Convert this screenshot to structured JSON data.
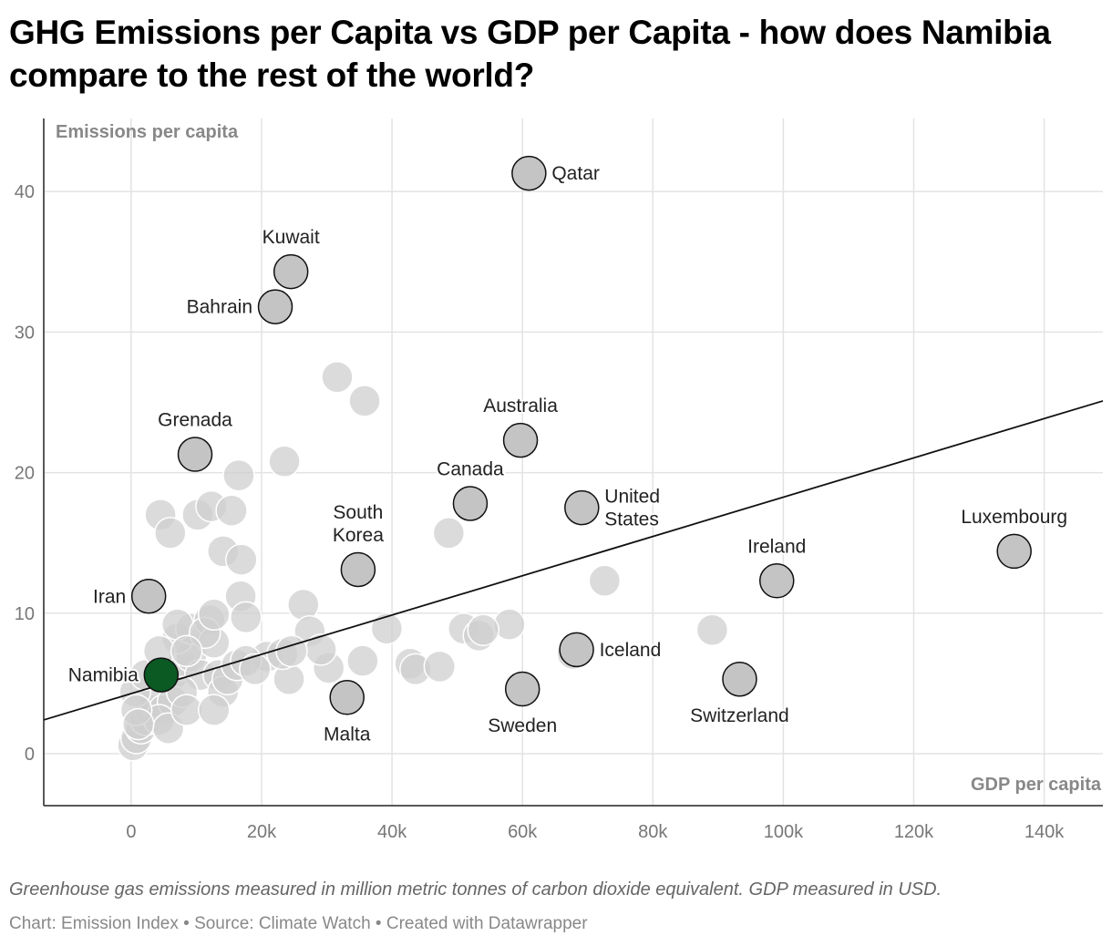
{
  "title": "GHG Emissions per Capita vs GDP per Capita - how does Namibia compare to the rest of the world?",
  "note": "Greenhouse gas emissions measured in million metric tonnes of carbon dioxide equivalent. GDP measured in USD.",
  "source": "Chart: Emission Index • Source: Climate Watch • Created with Datawrapper",
  "chart_data": {
    "type": "scatter",
    "xlabel": "GDP per capita",
    "ylabel": "Emissions per capita",
    "xlim": [
      -13400,
      149000
    ],
    "ylim": [
      -3.7,
      45.2
    ],
    "x_ticks": [
      {
        "v": 0,
        "label": "0"
      },
      {
        "v": 20000,
        "label": "20k"
      },
      {
        "v": 40000,
        "label": "40k"
      },
      {
        "v": 60000,
        "label": "60k"
      },
      {
        "v": 80000,
        "label": "80k"
      },
      {
        "v": 100000,
        "label": "100k"
      },
      {
        "v": 120000,
        "label": "120k"
      },
      {
        "v": 140000,
        "label": "140k"
      }
    ],
    "y_ticks": [
      {
        "v": 0,
        "label": "0"
      },
      {
        "v": 10,
        "label": "10"
      },
      {
        "v": 20,
        "label": "20"
      },
      {
        "v": 30,
        "label": "30"
      },
      {
        "v": 40,
        "label": "40"
      }
    ],
    "grid": true,
    "colors": {
      "highlight": "#0b5a24",
      "labeled": "#c4c4c4",
      "background": "#cfcfcf",
      "trend": "#111111"
    },
    "trendline": {
      "x": [
        -13400,
        149000
      ],
      "y": [
        2.4,
        25.1
      ]
    },
    "labeled_points": [
      {
        "name": "Qatar",
        "x": 61000,
        "y": 41.3,
        "label_position": "right"
      },
      {
        "name": "Kuwait",
        "x": 24500,
        "y": 34.3,
        "label_position": "top"
      },
      {
        "name": "Bahrain",
        "x": 22100,
        "y": 31.8,
        "label_position": "left"
      },
      {
        "name": "Grenada",
        "x": 9800,
        "y": 21.3,
        "label_position": "top"
      },
      {
        "name": "Australia",
        "x": 59700,
        "y": 22.3,
        "label_position": "top"
      },
      {
        "name": "Canada",
        "x": 52000,
        "y": 17.8,
        "label_position": "top"
      },
      {
        "name": "United States",
        "x": 69100,
        "y": 17.5,
        "label_position": "right"
      },
      {
        "name": "South Korea",
        "x": 34800,
        "y": 13.1,
        "label_position": "top"
      },
      {
        "name": "Iran",
        "x": 2700,
        "y": 11.2,
        "label_position": "left"
      },
      {
        "name": "Namibia",
        "x": 4600,
        "y": 5.6,
        "label_position": "left",
        "highlight": true
      },
      {
        "name": "Malta",
        "x": 33100,
        "y": 4.0,
        "label_position": "bottom"
      },
      {
        "name": "Sweden",
        "x": 60000,
        "y": 4.6,
        "label_position": "bottom"
      },
      {
        "name": "Iceland",
        "x": 68300,
        "y": 7.4,
        "label_position": "right"
      },
      {
        "name": "Switzerland",
        "x": 93300,
        "y": 5.3,
        "label_position": "bottom"
      },
      {
        "name": "Ireland",
        "x": 99000,
        "y": 12.3,
        "label_position": "top"
      },
      {
        "name": "Luxembourg",
        "x": 135400,
        "y": 14.4,
        "label_position": "top"
      }
    ],
    "other_points": [
      [
        31600,
        26.8
      ],
      [
        35800,
        25.1
      ],
      [
        23500,
        20.8
      ],
      [
        16500,
        19.8
      ],
      [
        4500,
        17.0
      ],
      [
        6000,
        15.7
      ],
      [
        10200,
        17.0
      ],
      [
        12300,
        17.6
      ],
      [
        15400,
        17.3
      ],
      [
        14100,
        14.4
      ],
      [
        16900,
        13.8
      ],
      [
        16800,
        11.2
      ],
      [
        17600,
        9.7
      ],
      [
        26400,
        10.6
      ],
      [
        27400,
        8.7
      ],
      [
        39200,
        8.9
      ],
      [
        48700,
        15.7
      ],
      [
        72600,
        12.3
      ],
      [
        89100,
        8.8
      ],
      [
        58000,
        9.2
      ],
      [
        51000,
        8.9
      ],
      [
        53300,
        8.4
      ],
      [
        54000,
        8.8
      ],
      [
        42800,
        6.4
      ],
      [
        43600,
        6.0
      ],
      [
        47300,
        6.2
      ],
      [
        35500,
        6.6
      ],
      [
        30300,
        6.1
      ],
      [
        29100,
        7.4
      ],
      [
        24200,
        5.3
      ],
      [
        20800,
        6.9
      ],
      [
        23200,
        7.1
      ],
      [
        24600,
        7.3
      ],
      [
        67700,
        7.1
      ],
      [
        300,
        0.6
      ],
      [
        800,
        1.1
      ],
      [
        1500,
        1.8
      ],
      [
        2200,
        2.4
      ],
      [
        2900,
        3.1
      ],
      [
        3600,
        3.7
      ],
      [
        600,
        4.4
      ],
      [
        2200,
        5.6
      ],
      [
        6400,
        5.6
      ],
      [
        7800,
        6.3
      ],
      [
        9200,
        6.9
      ],
      [
        7100,
        8.2
      ],
      [
        9200,
        8.9
      ],
      [
        12000,
        9.5
      ],
      [
        12700,
        7.9
      ],
      [
        10600,
        5.6
      ],
      [
        13400,
        5.6
      ],
      [
        14100,
        4.4
      ],
      [
        14800,
        5.3
      ],
      [
        16200,
        6.3
      ],
      [
        17600,
        6.6
      ],
      [
        19000,
        6.0
      ],
      [
        5000,
        3.1
      ],
      [
        6400,
        3.7
      ],
      [
        7800,
        4.4
      ],
      [
        4300,
        2.4
      ],
      [
        5700,
        1.8
      ],
      [
        8500,
        3.1
      ],
      [
        12700,
        3.1
      ],
      [
        7100,
        9.2
      ],
      [
        11300,
        8.6
      ],
      [
        4300,
        7.3
      ],
      [
        800,
        3.1
      ],
      [
        1100,
        2.1
      ],
      [
        8500,
        7.3
      ],
      [
        12700,
        9.9
      ]
    ]
  }
}
